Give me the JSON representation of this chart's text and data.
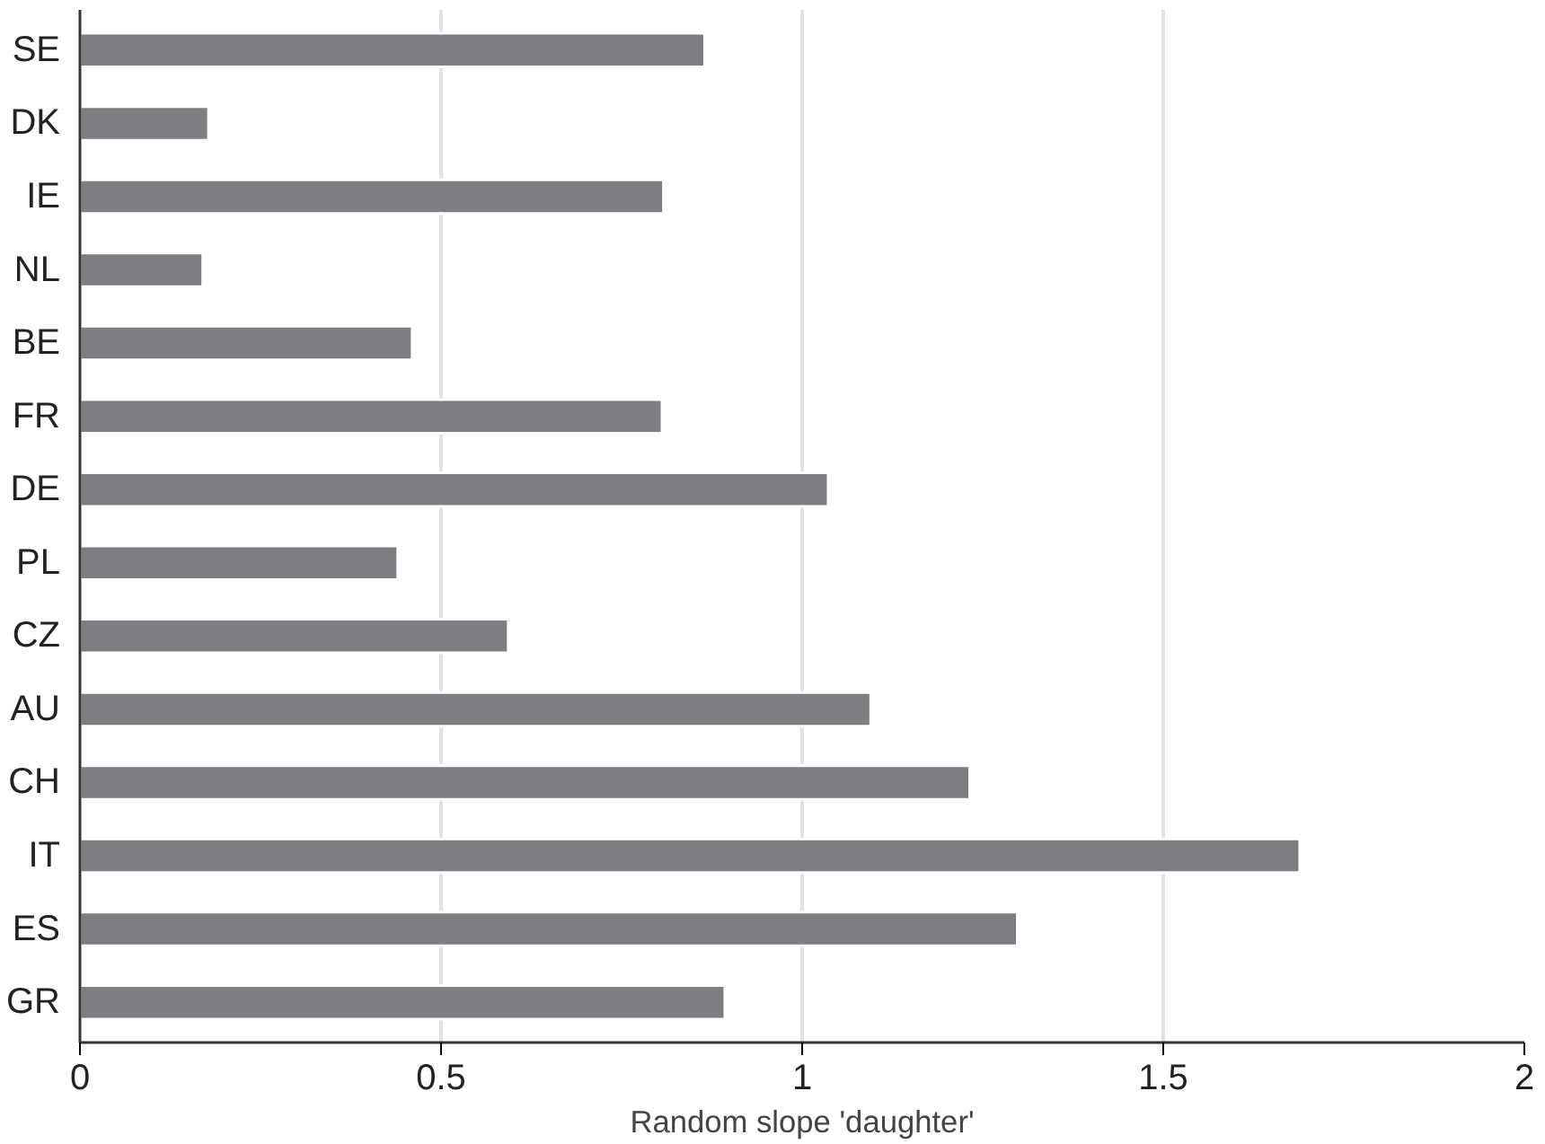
{
  "chart_data": {
    "type": "bar",
    "orientation": "horizontal",
    "xlabel": "Random slope 'daughter'",
    "categories": [
      "SE",
      "DK",
      "IE",
      "NL",
      "BE",
      "FR",
      "DE",
      "PL",
      "CZ",
      "AU",
      "CH",
      "IT",
      "ES",
      "GR"
    ],
    "values": [
      0.865,
      0.178,
      0.808,
      0.17,
      0.46,
      0.806,
      1.036,
      0.44,
      0.593,
      1.095,
      1.232,
      1.689,
      1.298,
      0.893
    ],
    "color": "#7d7e82",
    "xlim": [
      0,
      2
    ],
    "xticks": [
      0,
      0.5,
      1,
      1.5,
      2
    ],
    "grid": "x"
  }
}
